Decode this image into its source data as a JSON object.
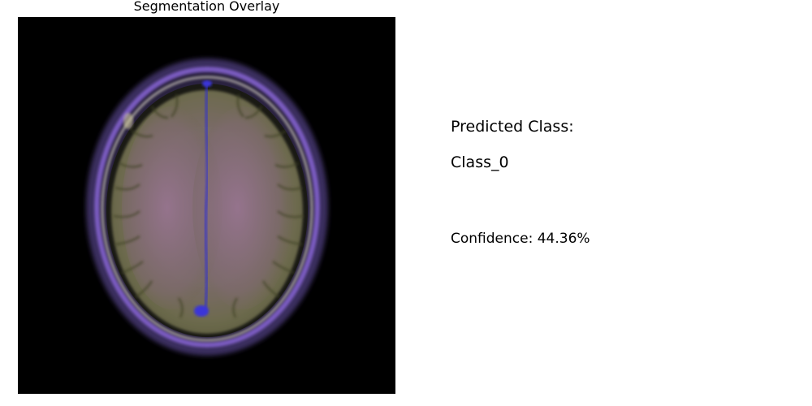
{
  "panel": {
    "title": "Segmentation Overlay"
  },
  "result": {
    "heading": "Predicted Class:",
    "class_label": "Class_0",
    "confidence_text": "Confidence: 44.36%",
    "confidence_value": 44.36
  },
  "colors": {
    "background": "#ffffff",
    "image_background": "#000000",
    "overlay_tint": "#8a5a9e",
    "tissue": "#6f6a52",
    "skull_ring": "#6a4fa8",
    "midline": "#2e2ecc"
  },
  "icons": {
    "image": "brain-mri-image"
  }
}
